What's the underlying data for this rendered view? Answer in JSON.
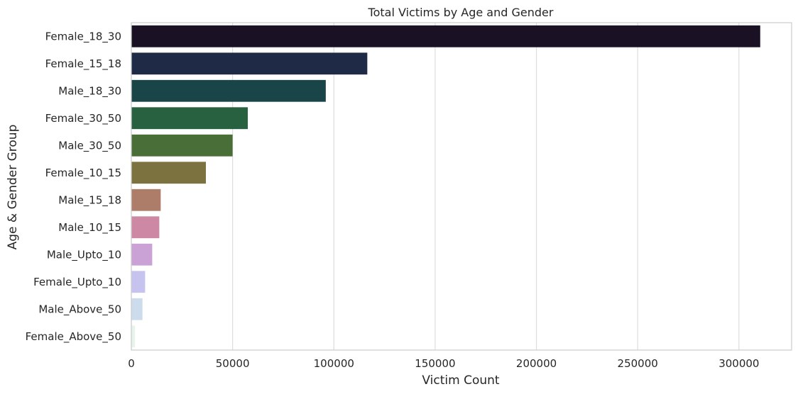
{
  "chart_data": {
    "type": "bar",
    "orientation": "horizontal",
    "title": "Total Victims by Age and Gender",
    "xlabel": "Victim Count",
    "ylabel": "Age & Gender Group",
    "categories": [
      "Female_18_30",
      "Female_15_18",
      "Male_18_30",
      "Female_30_50",
      "Male_30_50",
      "Female_10_15",
      "Male_15_18",
      "Male_10_15",
      "Male_Upto_10",
      "Female_Upto_10",
      "Male_Above_50",
      "Female_Above_50"
    ],
    "values": [
      310500,
      116500,
      96000,
      57500,
      50000,
      36800,
      14500,
      13800,
      10300,
      6800,
      5500,
      1800
    ],
    "colors": [
      "#1a1125",
      "#1f2a47",
      "#1a4548",
      "#27613f",
      "#4a6e38",
      "#7c723f",
      "#ae7d6a",
      "#cd89a3",
      "#cba2d6",
      "#c7c3ef",
      "#cddcec",
      "#e6f4ec"
    ],
    "xlim": [
      0,
      326000
    ],
    "xticks": [
      0,
      50000,
      100000,
      150000,
      200000,
      250000,
      300000
    ],
    "grid": "vertical"
  }
}
